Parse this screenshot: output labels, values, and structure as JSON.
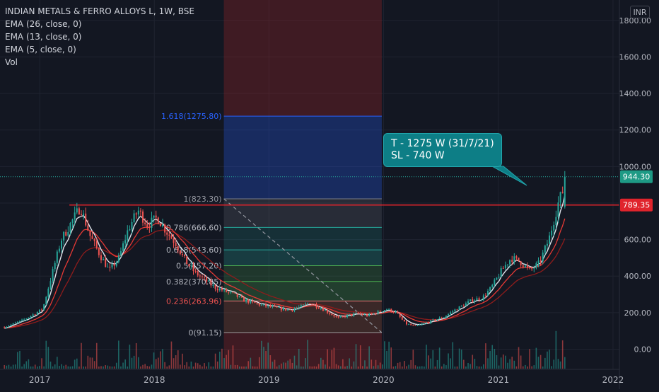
{
  "legend": {
    "title": "INDIAN METALS & FERRO ALLOYS L, 1W, BSE",
    "ema1": "EMA (26, close, 0)",
    "ema2": "EMA (13, close, 0)",
    "ema3": "EMA (5, close, 0)",
    "vol": "Vol"
  },
  "currency": "INR",
  "annotation": {
    "line1": "T - 1275 W (31/7/21)",
    "line2": "SL - 740 W"
  },
  "colors": {
    "background": "#131722",
    "up": "#26a69a",
    "down": "#ef5350",
    "ema_white": "#e0e3eb",
    "ema_red": "#e53935",
    "ema_darkred": "#8e1c1c",
    "resistance": "#e0242c",
    "fib_label_blue": "#2962ff"
  },
  "chart_data": {
    "type": "candlestick",
    "x_ticks": [
      "2017",
      "2018",
      "2019",
      "2020",
      "2021",
      "2022"
    ],
    "y_ticks": [
      "0.00",
      "200.00",
      "400.00",
      "600.00",
      "800.00",
      "1000.00",
      "1200.00",
      "1400.00",
      "1600.00",
      "1800.00"
    ],
    "y_range": [
      -60,
      1900
    ],
    "price_series": [
      [
        "2016-09",
        120
      ],
      [
        "2016-11",
        160
      ],
      [
        "2017-01",
        220
      ],
      [
        "2017-02",
        420
      ],
      [
        "2017-03",
        600
      ],
      [
        "2017-04",
        690
      ],
      [
        "2017-05",
        780
      ],
      [
        "2017-06",
        620
      ],
      [
        "2017-07",
        520
      ],
      [
        "2017-08",
        430
      ],
      [
        "2017-09",
        500
      ],
      [
        "2017-10",
        660
      ],
      [
        "2017-11",
        760
      ],
      [
        "2017-12",
        680
      ],
      [
        "2018-01",
        720
      ],
      [
        "2018-02",
        640
      ],
      [
        "2018-03",
        580
      ],
      [
        "2018-04",
        480
      ],
      [
        "2018-05",
        420
      ],
      [
        "2018-06",
        380
      ],
      [
        "2018-07",
        340
      ],
      [
        "2018-08",
        320
      ],
      [
        "2018-09",
        300
      ],
      [
        "2018-10",
        270
      ],
      [
        "2018-11",
        255
      ],
      [
        "2018-12",
        240
      ],
      [
        "2019-01",
        230
      ],
      [
        "2019-02",
        220
      ],
      [
        "2019-03",
        215
      ],
      [
        "2019-04",
        230
      ],
      [
        "2019-05",
        255
      ],
      [
        "2019-06",
        230
      ],
      [
        "2019-07",
        200
      ],
      [
        "2019-08",
        170
      ],
      [
        "2019-09",
        185
      ],
      [
        "2019-10",
        195
      ],
      [
        "2019-11",
        185
      ],
      [
        "2019-12",
        200
      ],
      [
        "2020-01",
        220
      ],
      [
        "2020-02",
        200
      ],
      [
        "2020-03",
        140
      ],
      [
        "2020-04",
        125
      ],
      [
        "2020-05",
        140
      ],
      [
        "2020-06",
        160
      ],
      [
        "2020-07",
        175
      ],
      [
        "2020-08",
        210
      ],
      [
        "2020-09",
        240
      ],
      [
        "2020-10",
        270
      ],
      [
        "2020-11",
        280
      ],
      [
        "2020-12",
        340
      ],
      [
        "2021-01",
        430
      ],
      [
        "2021-02",
        500
      ],
      [
        "2021-03",
        480
      ],
      [
        "2021-04",
        430
      ],
      [
        "2021-05",
        470
      ],
      [
        "2021-06",
        600
      ],
      [
        "2021-07",
        800
      ],
      [
        "2021-08",
        944.3
      ]
    ],
    "last_price": "944.30",
    "resistance_level": "789.35",
    "fibonacci": [
      {
        "label": "1.618(1275.80)",
        "value": 1275.8
      },
      {
        "label": "1(823.30)",
        "value": 823.3
      },
      {
        "label": "0.786(666.60)",
        "value": 666.6
      },
      {
        "label": "0.618(543.60)",
        "value": 543.6
      },
      {
        "label": "0.5(457.20)",
        "value": 457.2
      },
      {
        "label": "0.382(370.85)",
        "value": 370.85
      },
      {
        "label": "0.236(263.96)",
        "value": 263.96
      },
      {
        "label": "0(91.15)",
        "value": 91.15
      }
    ],
    "fib_x_range": [
      "2018-08-15",
      "2019-12-31"
    ],
    "grid": true
  }
}
